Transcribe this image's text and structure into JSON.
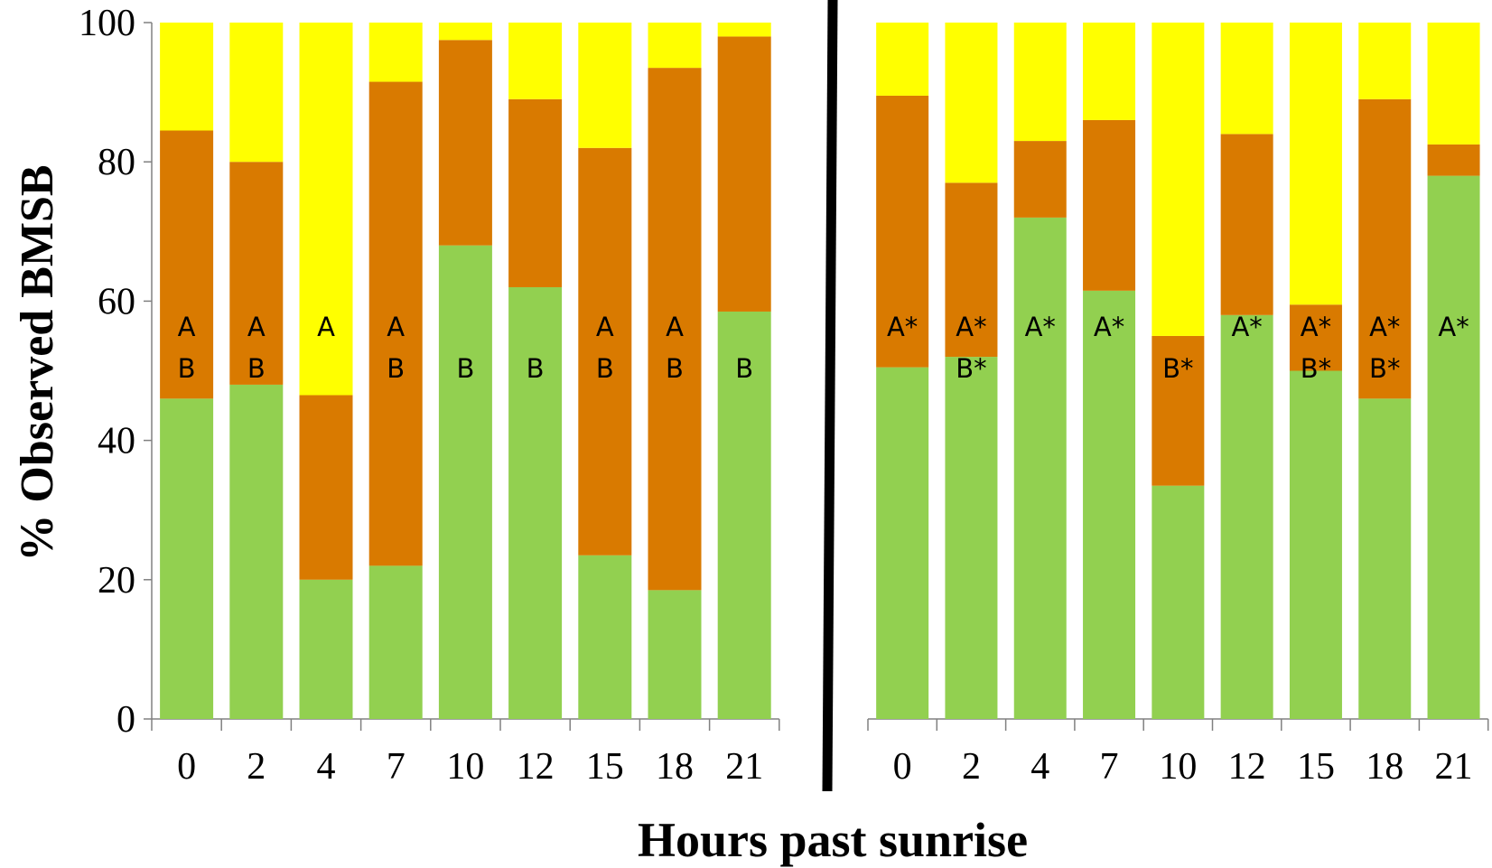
{
  "colors": {
    "green": "#92d050",
    "orange": "#d97a00",
    "yellow": "#ffff00"
  },
  "chart_data": [
    {
      "type": "bar",
      "stacked": true,
      "categories": [
        "0",
        "2",
        "4",
        "7",
        "10",
        "12",
        "15",
        "18",
        "21"
      ],
      "ylim": [
        0,
        100
      ],
      "y_ticks": [
        "0",
        "20",
        "40",
        "60",
        "80",
        "100"
      ],
      "ylabel": "% Observed BMSB",
      "series": [
        {
          "color": "green",
          "values": [
            46,
            48,
            20,
            22,
            68,
            62,
            23.5,
            18.5,
            58.5
          ]
        },
        {
          "color": "orange",
          "values": [
            38.5,
            32,
            26.5,
            69.5,
            29.5,
            27,
            58.5,
            75,
            39.5
          ]
        },
        {
          "color": "yellow",
          "values": [
            15.5,
            20,
            53.5,
            8.5,
            2.5,
            11,
            18,
            6.5,
            2
          ]
        }
      ],
      "annotations": [
        [
          "A",
          "B"
        ],
        [
          "A",
          "B"
        ],
        [
          "A",
          ""
        ],
        [
          "A",
          "B"
        ],
        [
          "",
          "B"
        ],
        [
          "",
          "B"
        ],
        [
          "A",
          "B"
        ],
        [
          "A",
          "B"
        ],
        [
          "",
          "B"
        ]
      ]
    },
    {
      "type": "bar",
      "stacked": true,
      "categories": [
        "0",
        "2",
        "4",
        "7",
        "10",
        "12",
        "15",
        "18",
        "21"
      ],
      "ylim": [
        0,
        100
      ],
      "series": [
        {
          "color": "green",
          "values": [
            50.5,
            52,
            72,
            61.5,
            33.5,
            58,
            50,
            46,
            78
          ]
        },
        {
          "color": "orange",
          "values": [
            39,
            25,
            11,
            24.5,
            21.5,
            26,
            9.5,
            43,
            4.5
          ]
        },
        {
          "color": "yellow",
          "values": [
            10.5,
            23,
            17,
            14,
            45,
            16,
            40.5,
            11,
            17.5
          ]
        }
      ],
      "annotations": [
        [
          "A*",
          ""
        ],
        [
          "A*",
          "B*"
        ],
        [
          "A*",
          ""
        ],
        [
          "A*",
          ""
        ],
        [
          "",
          "B*"
        ],
        [
          "A*",
          ""
        ],
        [
          "A*",
          "B*"
        ],
        [
          "A*",
          "B*"
        ],
        [
          "A*",
          ""
        ]
      ]
    }
  ],
  "xlabel": "Hours past sunrise"
}
